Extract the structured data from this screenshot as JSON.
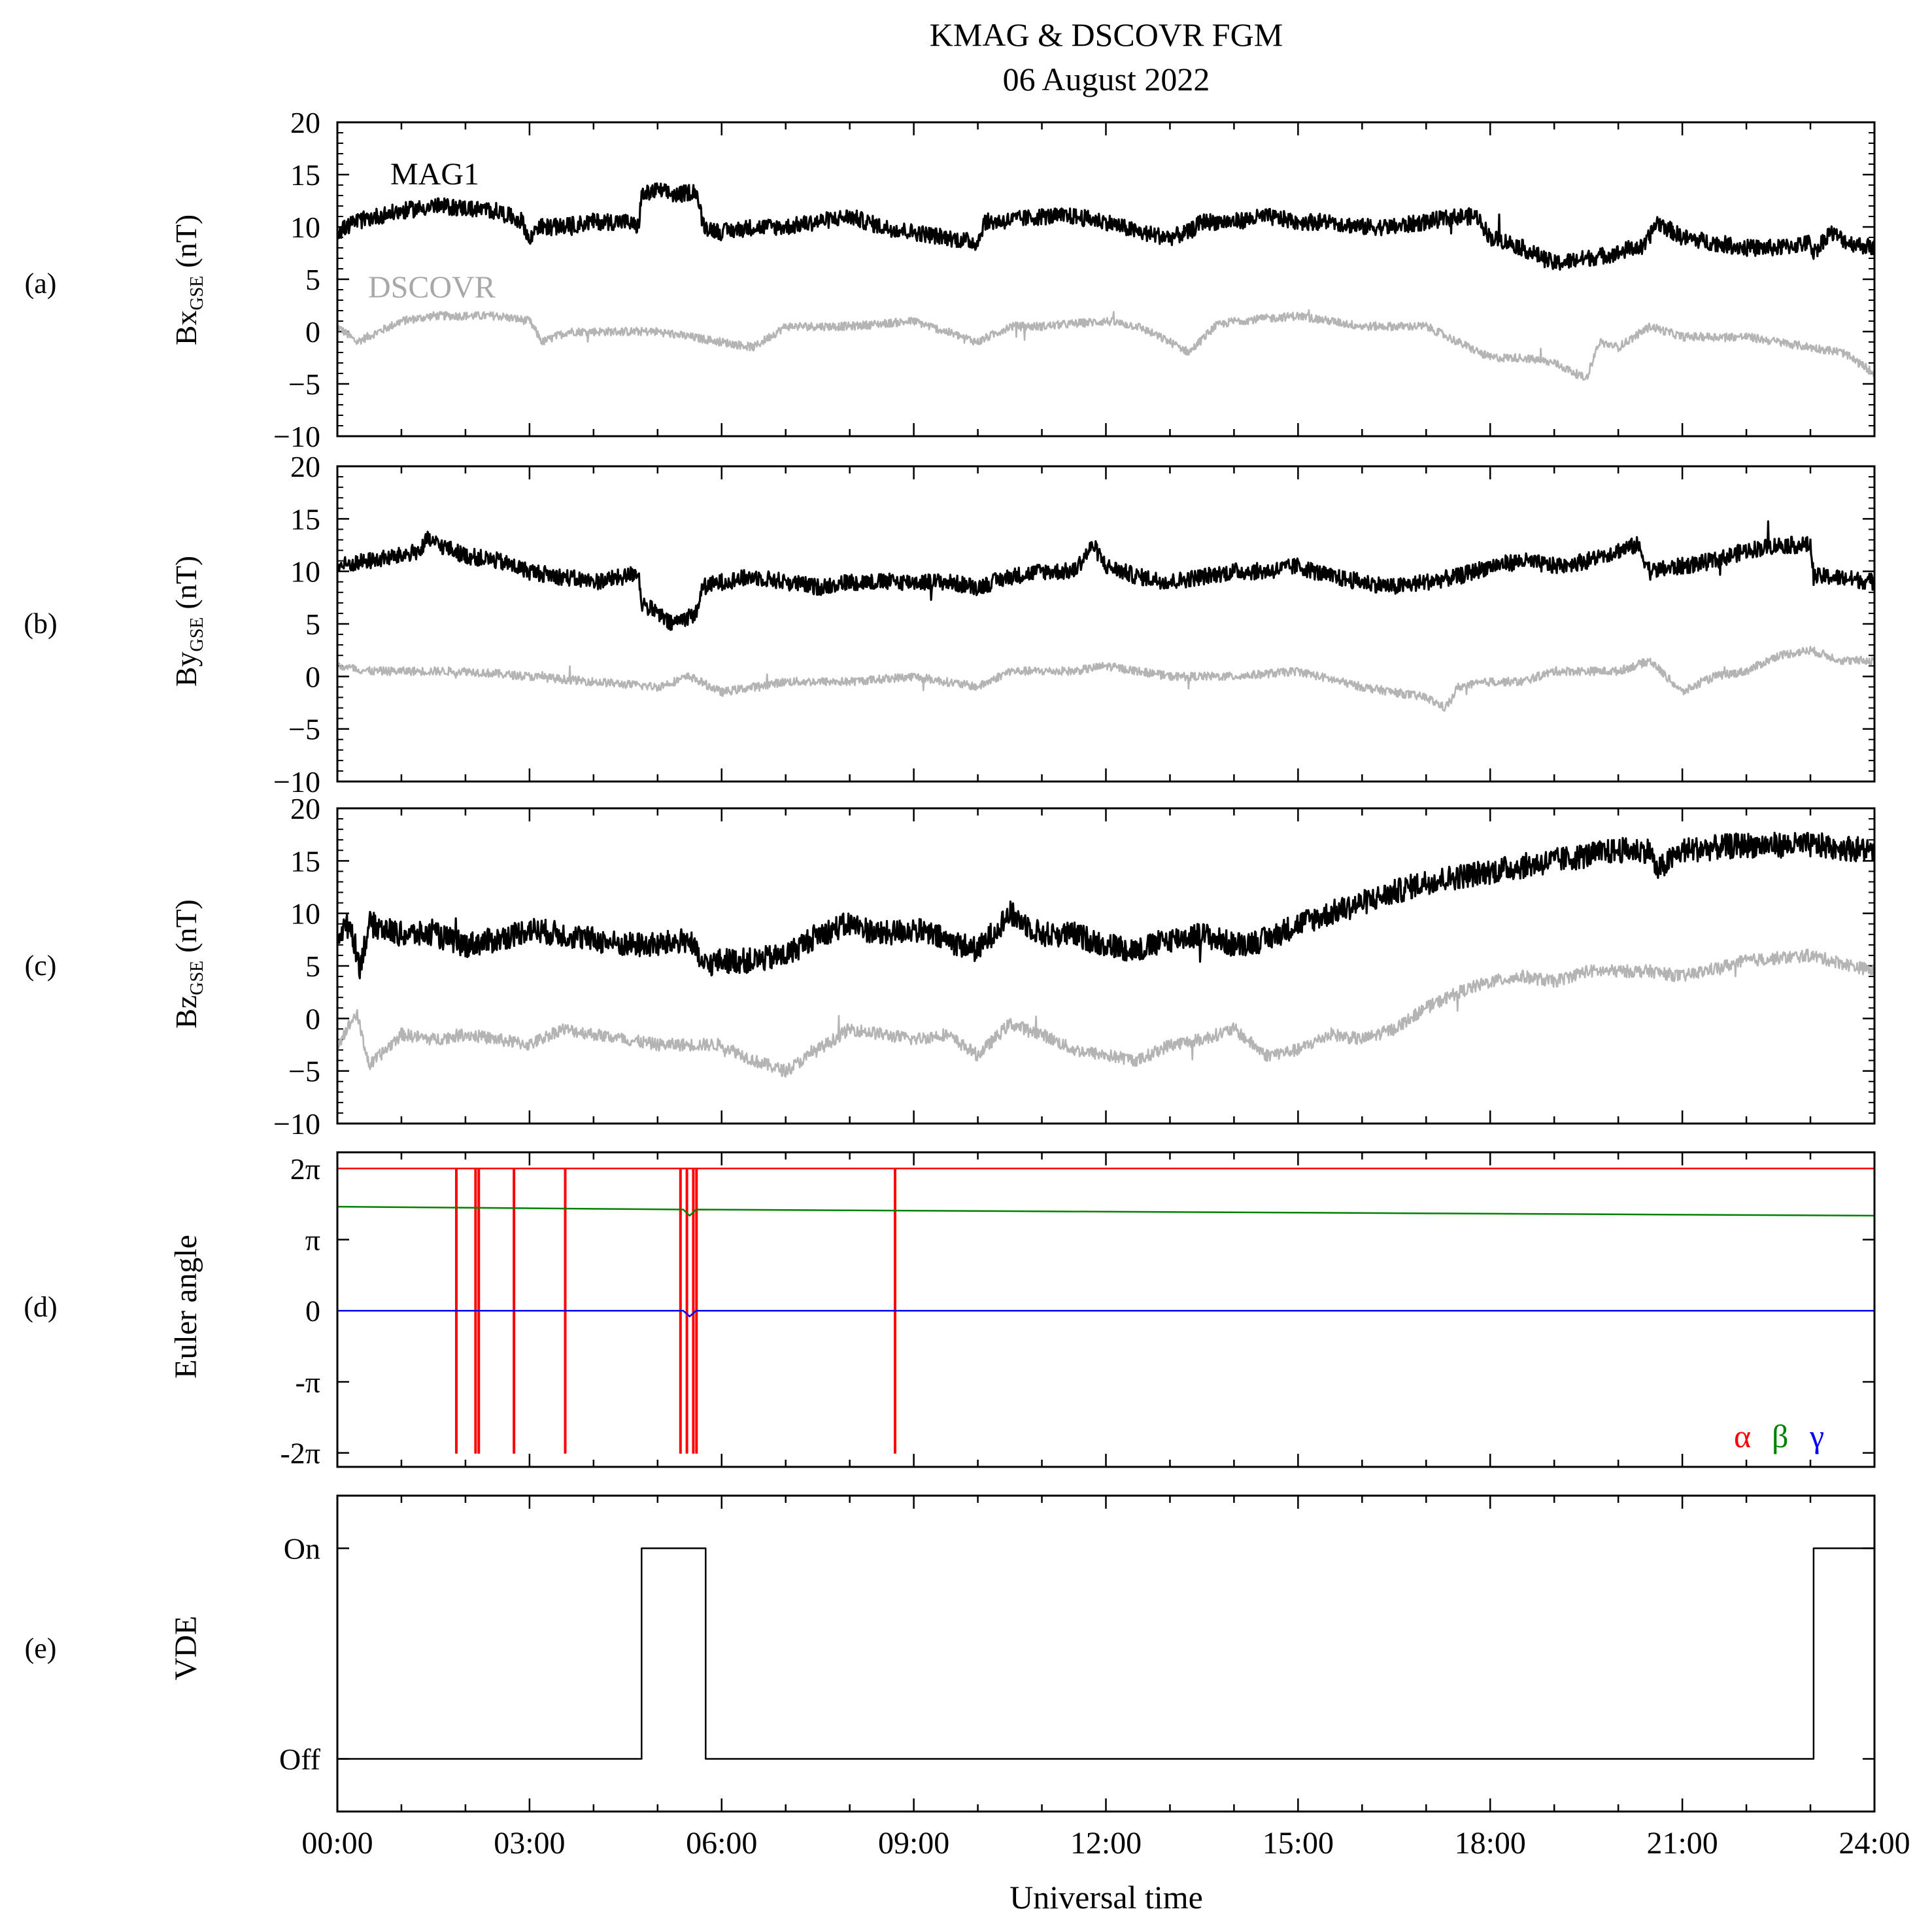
{
  "figure": {
    "title_line1": "KMAG & DSCOVR FGM",
    "title_line2": "06 August 2022",
    "xlabel": "Universal time",
    "x_tick_labels": [
      "00:00",
      "03:00",
      "06:00",
      "09:00",
      "12:00",
      "15:00",
      "18:00",
      "21:00",
      "24:00"
    ],
    "x_ticks_hours": [
      0,
      3,
      6,
      9,
      12,
      15,
      18,
      21,
      24
    ],
    "colors": {
      "mag1": "#000000",
      "dscovr": "#b4b4b4",
      "alpha": "#ff0000",
      "beta": "#008000",
      "gamma": "#0000ff"
    }
  },
  "chart_data": [
    {
      "type": "line",
      "panel": "(a)",
      "ylabel_main": "Bx",
      "ylabel_sub": "GSE",
      "ylabel_unit": "(nT)",
      "ylim": [
        -10,
        20
      ],
      "xlim": [
        0,
        24
      ],
      "y_ticks": [
        -10,
        -5,
        0,
        5,
        10,
        15,
        20
      ],
      "y_tick_labels": [
        "−10",
        "−5",
        "0",
        "5",
        "10",
        "15",
        "20"
      ],
      "series": [
        {
          "name": "MAG1",
          "color": "#000000",
          "noise": 0.8,
          "x": [
            0,
            0.3,
            0.6,
            1.0,
            1.5,
            2.0,
            2.5,
            2.9,
            3.0,
            3.1,
            3.5,
            4.0,
            4.5,
            4.7,
            4.75,
            5.0,
            5.3,
            5.6,
            5.7,
            5.75,
            6.0,
            6.5,
            7.0,
            7.5,
            8.0,
            8.5,
            9.0,
            9.5,
            10.0,
            10.1,
            10.3,
            11.0,
            11.5,
            12.0,
            12.5,
            13.0,
            13.3,
            13.5,
            14.0,
            14.5,
            15.0,
            15.5,
            16.0,
            16.5,
            17.0,
            17.5,
            17.8,
            18.0,
            18.3,
            18.5,
            19.0,
            19.5,
            20.0,
            20.2,
            20.4,
            20.6,
            21.0,
            21.5,
            22.0,
            22.5,
            23.0,
            23.05,
            23.3,
            23.6,
            24.0
          ],
          "y": [
            9.5,
            10.5,
            11.0,
            11.5,
            12.0,
            11.8,
            11.5,
            10.5,
            8.5,
            10.0,
            10.0,
            10.5,
            10.5,
            10.0,
            13.0,
            13.5,
            13.0,
            13.5,
            10.5,
            10.0,
            9.5,
            10.0,
            10.0,
            10.5,
            11.0,
            10.0,
            9.5,
            9.0,
            8.5,
            10.5,
            10.5,
            11.0,
            11.0,
            10.5,
            9.5,
            9.0,
            9.5,
            10.5,
            10.5,
            11.0,
            10.5,
            10.5,
            10.0,
            10.0,
            10.5,
            11.0,
            11.0,
            9.0,
            8.5,
            8.0,
            6.5,
            7.0,
            7.5,
            8.0,
            8.0,
            10.5,
            9.0,
            8.5,
            8.0,
            8.0,
            8.5,
            7.5,
            9.5,
            8.5,
            8.0
          ]
        },
        {
          "name": "DSCOVR",
          "color": "#b4b4b4",
          "noise": 0.4,
          "x": [
            0,
            0.3,
            1.0,
            1.5,
            2.0,
            2.5,
            3.0,
            3.2,
            3.6,
            4.0,
            5.0,
            6.0,
            6.5,
            7.0,
            8.0,
            9.0,
            9.5,
            10.0,
            10.5,
            11.0,
            12.0,
            12.5,
            13.0,
            13.3,
            13.7,
            14.0,
            15.0,
            15.5,
            16.0,
            17.0,
            17.5,
            18.0,
            18.5,
            19.0,
            19.5,
            19.7,
            20.0,
            20.5,
            21.0,
            22.0,
            23.0,
            23.5,
            24.0
          ],
          "y": [
            0.5,
            -1.0,
            1.0,
            1.5,
            1.5,
            1.5,
            1.0,
            -1.0,
            0.0,
            0.0,
            0.0,
            -1.0,
            -1.5,
            0.5,
            0.5,
            1.0,
            0.0,
            -1.0,
            0.5,
            0.5,
            1.0,
            0.5,
            -1.0,
            -2.0,
            0.5,
            1.0,
            1.5,
            1.0,
            0.5,
            0.5,
            -1.0,
            -2.5,
            -2.5,
            -3.0,
            -4.5,
            -1.0,
            -1.5,
            0.5,
            -0.5,
            -0.5,
            -1.5,
            -2.0,
            -4.0
          ]
        }
      ],
      "annotations": [
        "MAG1",
        "DSCOVR"
      ]
    },
    {
      "type": "line",
      "panel": "(b)",
      "ylabel_main": "By",
      "ylabel_sub": "GSE",
      "ylabel_unit": "(nT)",
      "ylim": [
        -10,
        20
      ],
      "xlim": [
        0,
        24
      ],
      "y_ticks": [
        -10,
        -5,
        0,
        5,
        10,
        15,
        20
      ],
      "y_tick_labels": [
        "−10",
        "−5",
        "0",
        "5",
        "10",
        "15",
        "20"
      ],
      "series": [
        {
          "name": "MAG1",
          "color": "#000000",
          "noise": 0.8,
          "x": [
            0,
            0.5,
            1.0,
            1.3,
            1.4,
            2.0,
            2.5,
            3.0,
            3.5,
            4.0,
            4.5,
            4.7,
            4.75,
            5.0,
            5.2,
            5.6,
            5.7,
            6.0,
            6.5,
            7.0,
            7.5,
            8.0,
            8.5,
            9.0,
            9.5,
            10.0,
            10.5,
            11.0,
            11.5,
            11.8,
            12.0,
            12.5,
            13.0,
            13.5,
            14.0,
            14.5,
            15.0,
            15.5,
            16.0,
            16.5,
            17.0,
            17.5,
            18.0,
            18.5,
            19.0,
            19.5,
            20.0,
            20.3,
            20.5,
            21.0,
            21.5,
            22.0,
            22.5,
            23.0,
            23.05,
            23.3,
            24.0
          ],
          "y": [
            10.5,
            11.0,
            11.5,
            12.0,
            13.0,
            11.5,
            11.0,
            10.0,
            9.5,
            9.0,
            9.5,
            10.0,
            7.0,
            6.0,
            5.0,
            6.0,
            8.5,
            9.0,
            9.5,
            9.0,
            8.5,
            9.0,
            9.0,
            9.0,
            9.0,
            8.5,
            9.5,
            10.0,
            10.0,
            12.5,
            10.5,
            9.5,
            9.0,
            9.5,
            10.0,
            10.0,
            10.5,
            9.5,
            9.0,
            8.5,
            9.0,
            9.5,
            10.5,
            11.0,
            10.5,
            11.0,
            12.0,
            12.5,
            10.0,
            10.5,
            11.0,
            12.0,
            12.5,
            12.5,
            9.5,
            9.5,
            9.0
          ]
        },
        {
          "name": "DSCOVR",
          "color": "#b4b4b4",
          "noise": 0.4,
          "x": [
            0,
            0.5,
            1.0,
            1.5,
            2.0,
            3.0,
            4.0,
            5.0,
            5.5,
            6.0,
            7.0,
            8.0,
            9.0,
            10.0,
            10.5,
            11.0,
            11.5,
            12.0,
            13.0,
            14.0,
            15.0,
            16.0,
            17.0,
            17.3,
            17.5,
            18.0,
            18.5,
            19.0,
            19.5,
            20.0,
            20.5,
            21.0,
            21.5,
            22.0,
            22.5,
            23.0,
            23.5,
            24.0
          ],
          "y": [
            1.0,
            0.5,
            0.5,
            0.5,
            0.5,
            0.0,
            -0.5,
            -1.0,
            0.0,
            -1.5,
            -0.5,
            -0.5,
            0.0,
            -1.0,
            0.5,
            0.5,
            0.5,
            1.0,
            0.0,
            0.0,
            0.5,
            -1.0,
            -2.0,
            -3.0,
            -1.0,
            -0.5,
            -0.5,
            0.5,
            0.5,
            0.5,
            1.5,
            -1.5,
            0.0,
            0.5,
            2.0,
            2.5,
            1.5,
            1.5
          ]
        }
      ]
    },
    {
      "type": "line",
      "panel": "(c)",
      "ylabel_main": "Bz",
      "ylabel_sub": "GSE",
      "ylabel_unit": "(nT)",
      "ylim": [
        -10,
        20
      ],
      "xlim": [
        0,
        24
      ],
      "y_ticks": [
        -10,
        -5,
        0,
        5,
        10,
        15,
        20
      ],
      "y_tick_labels": [
        "−10",
        "−5",
        "0",
        "5",
        "10",
        "15",
        "20"
      ],
      "series": [
        {
          "name": "MAG1",
          "color": "#000000",
          "noise": 1.2,
          "x": [
            0,
            0.2,
            0.35,
            0.5,
            1.0,
            1.5,
            2.0,
            2.5,
            3.0,
            3.5,
            4.0,
            4.5,
            5.0,
            5.5,
            5.7,
            6.0,
            6.5,
            7.0,
            7.5,
            8.0,
            8.5,
            9.0,
            9.5,
            10.0,
            10.5,
            11.0,
            11.5,
            12.0,
            12.5,
            13.0,
            13.5,
            14.0,
            14.5,
            15.0,
            15.5,
            16.0,
            16.5,
            17.0,
            17.5,
            18.0,
            18.5,
            19.0,
            19.5,
            20.0,
            20.5,
            20.6,
            21.0,
            22.0,
            23.0,
            24.0
          ],
          "y": [
            8.0,
            9.0,
            5.0,
            9.0,
            8.0,
            8.0,
            7.0,
            7.5,
            8.5,
            8.0,
            7.5,
            7.0,
            7.0,
            7.5,
            5.0,
            5.5,
            5.5,
            6.0,
            8.0,
            9.0,
            8.0,
            8.5,
            7.5,
            6.5,
            10.0,
            8.0,
            8.0,
            7.0,
            6.5,
            7.5,
            8.0,
            7.0,
            7.5,
            9.0,
            10.0,
            11.0,
            12.0,
            13.0,
            13.5,
            14.0,
            14.5,
            15.0,
            15.5,
            16.0,
            16.0,
            14.0,
            16.0,
            16.5,
            16.5,
            16.0
          ]
        },
        {
          "name": "DSCOVR",
          "color": "#b4b4b4",
          "noise": 0.6,
          "x": [
            0,
            0.3,
            0.5,
            1.0,
            1.5,
            2.0,
            2.5,
            3.0,
            3.5,
            4.0,
            5.0,
            6.0,
            6.5,
            7.0,
            7.5,
            8.0,
            9.0,
            9.5,
            10.0,
            10.5,
            11.0,
            11.5,
            12.0,
            12.5,
            13.0,
            13.5,
            14.0,
            14.5,
            15.0,
            15.5,
            16.0,
            16.5,
            17.0,
            17.5,
            18.0,
            18.5,
            19.0,
            19.5,
            20.0,
            20.5,
            21.0,
            22.0,
            23.0,
            24.0
          ],
          "y": [
            -2.5,
            0.5,
            -4.5,
            -1.5,
            -2.0,
            -1.5,
            -2.0,
            -2.5,
            -1.0,
            -1.5,
            -2.5,
            -2.5,
            -4.0,
            -5.0,
            -3.0,
            -1.0,
            -2.0,
            -1.5,
            -3.5,
            -0.5,
            -1.5,
            -3.0,
            -3.5,
            -4.0,
            -2.5,
            -2.0,
            -1.0,
            -3.5,
            -3.0,
            -1.5,
            -2.0,
            -1.0,
            1.0,
            2.5,
            3.5,
            4.0,
            3.5,
            4.5,
            4.5,
            4.5,
            4.0,
            5.5,
            6.0,
            4.5
          ]
        }
      ]
    },
    {
      "type": "line",
      "panel": "(d)",
      "ylabel_main": "Euler angle",
      "ylim": [
        -6.9,
        7.0
      ],
      "xlim": [
        0,
        24
      ],
      "y_ticks": [
        -6.283,
        -3.1416,
        0,
        3.1416,
        6.283
      ],
      "y_tick_labels": [
        "-2π",
        "-π",
        "0",
        "π",
        "2π"
      ],
      "legend": [
        "α",
        "β",
        "γ"
      ],
      "legend_placement": "bottom-right",
      "series": [
        {
          "name": "α",
          "color": "#ff0000",
          "base": 6.283,
          "spikes_to": -6.283,
          "spike_times": [
            1.85,
            2.15,
            2.2,
            2.75,
            3.55,
            5.35,
            5.45,
            5.55,
            5.6,
            8.7
          ]
        },
        {
          "name": "β",
          "color": "#008000",
          "x": [
            0,
            5.4,
            5.5,
            5.6,
            24
          ],
          "y": [
            4.6,
            4.47,
            4.2,
            4.47,
            4.2
          ]
        },
        {
          "name": "γ",
          "color": "#0000ff",
          "x": [
            0,
            5.4,
            5.5,
            5.6,
            24
          ],
          "y": [
            0,
            0,
            -0.25,
            0,
            0
          ]
        }
      ]
    },
    {
      "type": "line",
      "panel": "(e)",
      "ylabel_main": "VDE",
      "ylim": [
        -0.25,
        1.25
      ],
      "xlim": [
        0,
        24
      ],
      "y_ticks": [
        0,
        1
      ],
      "y_tick_labels": [
        "Off",
        "On"
      ],
      "series": [
        {
          "name": "VDE",
          "color": "#000000",
          "x": [
            0,
            4.75,
            4.75,
            5.75,
            5.75,
            23.05,
            23.05,
            24
          ],
          "y": [
            0,
            0,
            1,
            1,
            0,
            0,
            1,
            1
          ]
        }
      ]
    }
  ]
}
